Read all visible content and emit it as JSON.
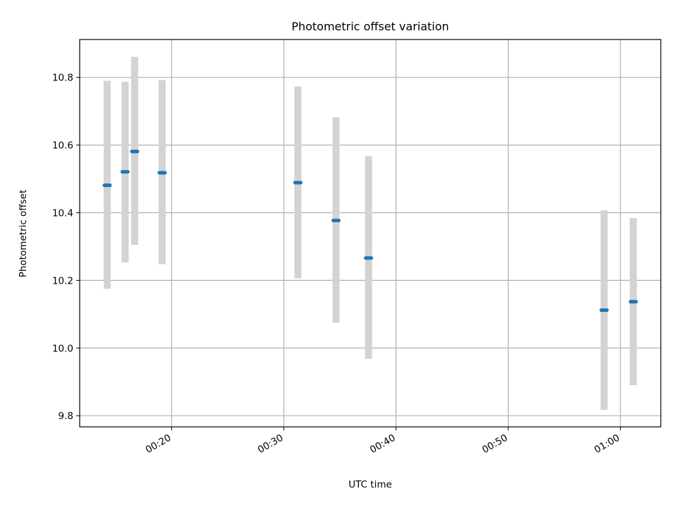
{
  "chart_data": {
    "type": "scatter",
    "title": "Photometric offset variation",
    "xlabel": "UTC time",
    "ylabel": "Photometric offset",
    "x_unit": "minutes",
    "xlim": [
      11.8,
      63.6
    ],
    "ylim": [
      9.767,
      10.912
    ],
    "x_ticks": [
      {
        "value": 20,
        "label": "00:20"
      },
      {
        "value": 30,
        "label": "00:30"
      },
      {
        "value": 40,
        "label": "00:40"
      },
      {
        "value": 50,
        "label": "00:50"
      },
      {
        "value": 60,
        "label": "01:00"
      }
    ],
    "y_ticks": [
      {
        "value": 9.8,
        "label": "9.8"
      },
      {
        "value": 10.0,
        "label": "10.0"
      },
      {
        "value": 10.2,
        "label": "10.2"
      },
      {
        "value": 10.4,
        "label": "10.4"
      },
      {
        "value": 10.6,
        "label": "10.6"
      },
      {
        "value": 10.8,
        "label": "10.8"
      }
    ],
    "grid": true,
    "marker_color": "#1f77b4",
    "errorbar_color": "#d3d3d3",
    "points": [
      {
        "time": "00:14:15",
        "x": 14.25,
        "y": 10.481,
        "yerr_low": 10.175,
        "yerr_high": 10.79
      },
      {
        "time": "00:15:51",
        "x": 15.85,
        "y": 10.521,
        "yerr_low": 10.253,
        "yerr_high": 10.787
      },
      {
        "time": "00:16:42",
        "x": 16.7,
        "y": 10.581,
        "yerr_low": 10.305,
        "yerr_high": 10.861
      },
      {
        "time": "00:19:09",
        "x": 19.15,
        "y": 10.518,
        "yerr_low": 10.248,
        "yerr_high": 10.792
      },
      {
        "time": "00:31:15",
        "x": 31.25,
        "y": 10.489,
        "yerr_low": 10.206,
        "yerr_high": 10.773
      },
      {
        "time": "00:34:39",
        "x": 34.65,
        "y": 10.377,
        "yerr_low": 10.075,
        "yerr_high": 10.682
      },
      {
        "time": "00:37:33",
        "x": 37.55,
        "y": 10.266,
        "yerr_low": 9.968,
        "yerr_high": 10.567
      },
      {
        "time": "00:58:33",
        "x": 58.55,
        "y": 10.112,
        "yerr_low": 9.817,
        "yerr_high": 10.407
      },
      {
        "time": "01:01:09",
        "x": 61.15,
        "y": 10.137,
        "yerr_low": 9.89,
        "yerr_high": 10.384
      }
    ]
  }
}
